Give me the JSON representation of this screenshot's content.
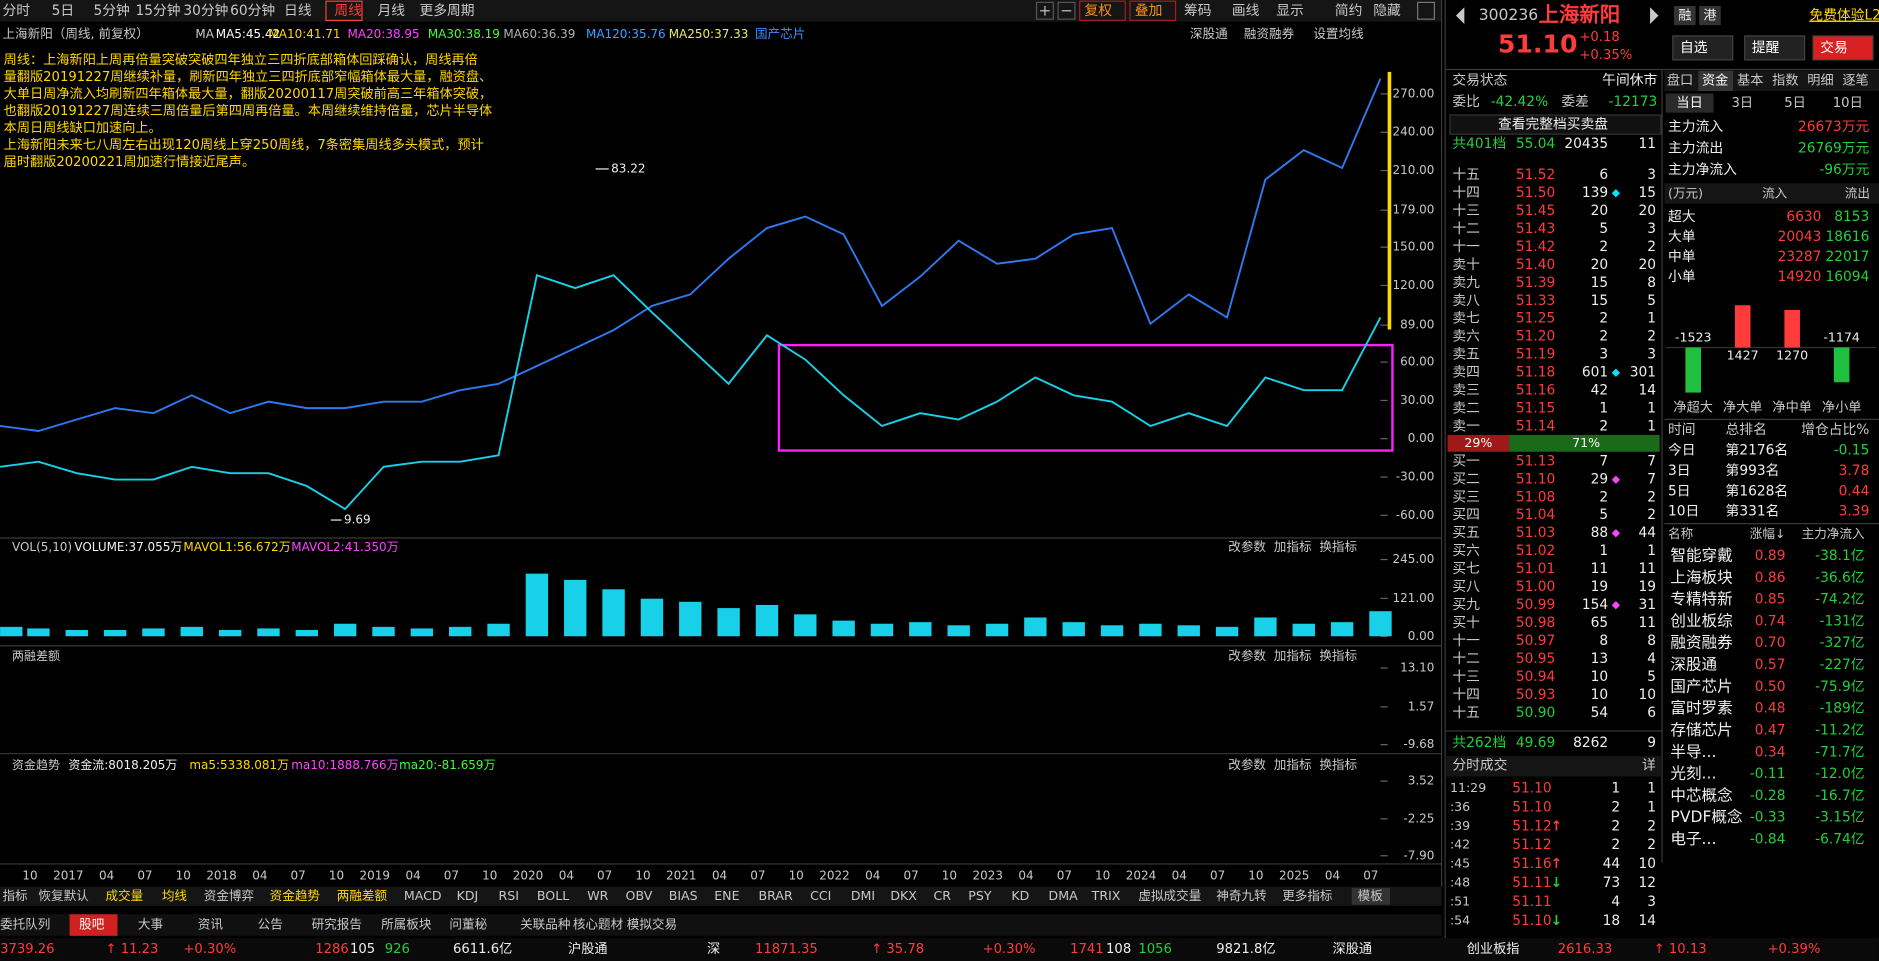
{
  "toolbar": {
    "periods": [
      "分时",
      "5日",
      "5分钟",
      "15分钟",
      "30分钟",
      "60分钟",
      "日线",
      "周线",
      "月线",
      "更多周期"
    ],
    "tools": [
      "复权",
      "叠加",
      "筹码",
      "画线",
      "显示",
      "简约",
      "隐藏"
    ]
  },
  "stock": {
    "code": "300236",
    "name": "上海新阳",
    "price": "51.10",
    "change": "+0.18",
    "change_pct": "+0.35%",
    "tags": [
      "融",
      "港"
    ],
    "promo": "免费体验L2行情",
    "buttons": [
      "自选",
      "提醒",
      "交易"
    ]
  },
  "legend": {
    "title": "上海新阳（周线, 前复权）",
    "ma_label": "MA",
    "mas": [
      "MA5:45.42",
      "MA10:41.71",
      "MA20:38.95",
      "MA30:38.19",
      "MA60:36.39",
      "MA120:35.76",
      "MA250:37.33"
    ],
    "concept": "国产芯片",
    "links": [
      "深股通",
      "融资融券",
      "设置均线"
    ]
  },
  "commentary": [
    "周线：上海新阳上周再倍量突破突破四年独立三四折底部箱体回踩确认，周线再倍",
    "量翻版20191227周继续补量，刷新四年独立三四折底部窄幅箱体最大量，融资盘、",
    "大单日周净流入均刷新四年箱体最大量，翻版20200117周突破前高三年箱体突破，",
    "也翻版20191227周连续三周倍量后第四周再倍量。本周继续维持倍量，芯片半导体",
    "本周日周线缺口加速向上。",
    "上海新阳未来七八周左右出现120周线上穿250周线，7条密集周线多头模式，预计",
    "届时翻版20200221周加速行情接近尾声。"
  ],
  "price_chart": {
    "ylim": [
      -74,
      306
    ],
    "yticks": [
      {
        "value": 270,
        "label": "270.00"
      },
      {
        "value": 240,
        "label": "240.00"
      },
      {
        "value": 210,
        "label": "210.00"
      },
      {
        "value": 179,
        "label": "179.00"
      },
      {
        "value": 150,
        "label": "150.00"
      },
      {
        "value": 120,
        "label": "120.00"
      },
      {
        "value": 89,
        "label": "89.00"
      },
      {
        "value": 60,
        "label": "60.00"
      },
      {
        "value": 30,
        "label": "30.00"
      },
      {
        "value": 0,
        "label": "0.00"
      },
      {
        "value": -30,
        "label": "-30.00"
      },
      {
        "value": -60,
        "label": "-60.00"
      }
    ],
    "series": [
      {
        "color": "#2f78f0",
        "values": [
          10,
          6,
          15,
          24,
          20,
          34,
          20,
          29,
          24,
          24,
          29,
          29,
          38,
          43,
          57,
          71,
          85,
          104,
          113,
          141,
          165,
          174,
          160,
          104,
          127,
          155,
          137,
          141,
          160,
          165,
          90,
          113,
          95,
          203,
          226,
          212,
          282
        ]
      },
      {
        "color": "#18d0e8",
        "values": [
          -22,
          -18,
          -27,
          -32,
          -32,
          -22,
          -27,
          -27,
          -37,
          -55,
          -22,
          -18,
          -18,
          -13,
          128,
          118,
          128,
          99,
          71,
          43,
          81,
          62,
          34,
          10,
          20,
          15,
          29,
          48,
          34,
          29,
          10,
          20,
          10,
          48,
          38,
          38,
          95
        ]
      }
    ],
    "annotations": [
      "83.22",
      "9.69"
    ],
    "x_labels": [
      "10",
      "2017",
      "04",
      "07",
      "10",
      "2018",
      "04",
      "07",
      "10",
      "2019",
      "04",
      "07",
      "10",
      "2020",
      "04",
      "07",
      "10",
      "2021",
      "04",
      "07",
      "10",
      "2022",
      "04",
      "07",
      "10",
      "2023",
      "04",
      "07",
      "10",
      "2024",
      "04",
      "07",
      "10",
      "2025",
      "04",
      "07"
    ]
  },
  "volume": {
    "legend": [
      "VOL(5,10)",
      "VOLUME:37.055万",
      "MAVOL1:56.672万",
      "MAVOL2:41.350万"
    ],
    "buttons": [
      "改参数",
      "加指标",
      "换指标"
    ],
    "ylim": [
      -23,
      264
    ],
    "yticks": [
      {
        "value": 245,
        "label": "245.00"
      },
      {
        "value": 121,
        "label": "121.00"
      },
      {
        "value": 0,
        "label": "0.00"
      }
    ],
    "color": "#18d0e8",
    "values": [
      30,
      25,
      20,
      20,
      25,
      30,
      20,
      25,
      20,
      40,
      30,
      25,
      30,
      40,
      200,
      180,
      150,
      120,
      110,
      90,
      100,
      70,
      50,
      40,
      45,
      35,
      40,
      60,
      45,
      35,
      40,
      35,
      30,
      60,
      40,
      45,
      80
    ]
  },
  "margin_panel": {
    "title": "两融差额",
    "buttons": [
      "改参数",
      "加指标",
      "换指标"
    ],
    "ylim": [
      -11.3,
      15.07
    ],
    "yticks": [
      {
        "value": 13.1,
        "label": "13.10"
      },
      1.57,
      -9.68
    ]
  },
  "fund_trend": {
    "legend": [
      "资金趋势",
      "资金流:8018.205万",
      "ma5:5338.081万",
      "ma10:1888.766万",
      "ma20:-81.659万"
    ],
    "buttons": [
      "改参数",
      "加指标",
      "换指标"
    ],
    "ylim": [
      -8.6,
      4.6
    ],
    "yticks": [
      3.52,
      -2.25,
      {
        "value": -7.9,
        "label": "-7.90"
      }
    ]
  },
  "indicators": [
    "指标",
    "恢复默认",
    "成交量",
    "均线",
    "资金博弈",
    "资金趋势",
    "两融差额",
    "MACD",
    "KDJ",
    "RSI",
    "BOLL",
    "WR",
    "OBV",
    "BIAS",
    "ENE",
    "BRAR",
    "CCI",
    "DMI",
    "DKX",
    "CR",
    "PSY",
    "KD",
    "DMA",
    "TRIX",
    "虚拟成交量",
    "神奇九转",
    "更多指标",
    "模板"
  ],
  "tabs": [
    "委托队列",
    "股吧",
    "大事",
    "资讯",
    "公告",
    "研究报告",
    "所属板块",
    "问董秘",
    "关联品种",
    "核心题材",
    "模拟交易"
  ],
  "status": {
    "sh": [
      "3739.26",
      "↑ 11.23",
      "+0.30%",
      "1286",
      "105",
      "926",
      "6611.6亿",
      "沪股通"
    ],
    "sz": [
      "深",
      "11871.35",
      "↑ 35.78",
      "+0.30%",
      "1741",
      "108",
      "1056",
      "9821.8亿",
      "深股通"
    ],
    "cy": [
      "创业板指",
      "2616.33",
      "↑ 10.13",
      "+0.39%"
    ]
  },
  "order_book": {
    "status_label": "交易状态",
    "status": "午间休市",
    "ratio_label": "委比",
    "ratio": "-42.42%",
    "diff_label": "委差",
    "diff": "-12173",
    "full": "查看完整档买卖盘",
    "ask_total": [
      "共401档",
      "55.04",
      "20435",
      "11"
    ],
    "asks": [
      [
        "十五",
        "51.52",
        "6",
        "3"
      ],
      [
        "十四",
        "51.50",
        "139",
        "15",
        "◆"
      ],
      [
        "十三",
        "51.45",
        "20",
        "20"
      ],
      [
        "十二",
        "51.43",
        "5",
        "3"
      ],
      [
        "十一",
        "51.42",
        "2",
        "2"
      ],
      [
        "卖十",
        "51.40",
        "20",
        "20"
      ],
      [
        "卖九",
        "51.39",
        "15",
        "8"
      ],
      [
        "卖八",
        "51.33",
        "15",
        "5"
      ],
      [
        "卖七",
        "51.25",
        "2",
        "1"
      ],
      [
        "卖六",
        "51.20",
        "2",
        "2"
      ],
      [
        "卖五",
        "51.19",
        "3",
        "3"
      ],
      [
        "卖四",
        "51.18",
        "601",
        "301",
        "◆"
      ],
      [
        "卖三",
        "51.16",
        "42",
        "14"
      ],
      [
        "卖二",
        "51.15",
        "1",
        "1"
      ],
      [
        "卖一",
        "51.14",
        "2",
        "1"
      ]
    ],
    "split": [
      "29%",
      "71%"
    ],
    "bids": [
      [
        "买一",
        "51.13",
        "7",
        "7"
      ],
      [
        "买二",
        "51.10",
        "29",
        "7",
        "◆"
      ],
      [
        "买三",
        "51.08",
        "2",
        "2"
      ],
      [
        "买四",
        "51.04",
        "5",
        "2"
      ],
      [
        "买五",
        "51.03",
        "88",
        "44",
        "◆"
      ],
      [
        "买六",
        "51.02",
        "1",
        "1"
      ],
      [
        "买七",
        "51.01",
        "11",
        "11"
      ],
      [
        "买八",
        "51.00",
        "19",
        "19"
      ],
      [
        "买九",
        "50.99",
        "154",
        "31",
        "◆"
      ],
      [
        "买十",
        "50.98",
        "65",
        "11"
      ],
      [
        "十一",
        "50.97",
        "8",
        "8"
      ],
      [
        "十二",
        "50.95",
        "13",
        "4"
      ],
      [
        "十三",
        "50.94",
        "10",
        "5"
      ],
      [
        "十四",
        "50.93",
        "10",
        "10"
      ],
      [
        "十五",
        "50.90",
        "54",
        "6"
      ]
    ],
    "bid_total": [
      "共262档",
      "49.69",
      "8262",
      "9"
    ]
  },
  "trades": {
    "title": "分时成交",
    "detail": "详",
    "rows": [
      [
        "11:29",
        "51.10",
        "1",
        "1"
      ],
      [
        ":36",
        "51.10",
        "2",
        "1"
      ],
      [
        ":39",
        "51.12",
        "2",
        "2",
        "↑"
      ],
      [
        ":42",
        "51.12",
        "2",
        "2"
      ],
      [
        ":45",
        "51.16",
        "44",
        "10",
        "↑"
      ],
      [
        ":48",
        "51.11",
        "73",
        "12",
        "↓"
      ],
      [
        ":51",
        "51.11",
        "4",
        "3"
      ],
      [
        ":54",
        "51.10",
        "18",
        "14",
        "↓"
      ]
    ]
  },
  "fund": {
    "tabs": [
      "盘口",
      "资金",
      "基本",
      "指数",
      "明细",
      "逐笔"
    ],
    "periods": [
      "当日",
      "3日",
      "5日",
      "10日"
    ],
    "main": [
      [
        "主力流入",
        "26673万元"
      ],
      [
        "主力流出",
        "26769万元"
      ],
      [
        "主力净流入",
        "-96万元"
      ]
    ],
    "table_header": [
      "(万元)",
      "流入",
      "流出"
    ],
    "table": [
      [
        "超大",
        "6630",
        "8153"
      ],
      [
        "大单",
        "20043",
        "18616"
      ],
      [
        "中单",
        "23287",
        "22017"
      ],
      [
        "小单",
        "14920",
        "16094"
      ]
    ],
    "net_chart": {
      "categories": [
        "净超大",
        "净大单",
        "净中单",
        "净小单"
      ],
      "values": [
        -1523,
        1427,
        1270,
        -1174
      ],
      "ylim": [
        -1700,
        1700
      ],
      "up_color": "#ff3b3b",
      "down_color": "#1fbf3f"
    },
    "rank_header": [
      "时间",
      "总排名",
      "增仓占比%"
    ],
    "rank": [
      [
        "今日",
        "第2176名",
        "-0.15"
      ],
      [
        "3日",
        "第993名",
        "3.78"
      ],
      [
        "5日",
        "第1628名",
        "0.44"
      ],
      [
        "10日",
        "第331名",
        "3.39"
      ]
    ],
    "sector_header": [
      "名称",
      "涨幅↓",
      "主力净流入"
    ],
    "sectors": [
      [
        "智能穿戴",
        "0.89",
        "-38.1亿"
      ],
      [
        "上海板块",
        "0.86",
        "-36.6亿"
      ],
      [
        "专精特新",
        "0.85",
        "-74.2亿"
      ],
      [
        "创业板综",
        "0.74",
        "-131亿"
      ],
      [
        "融资融券",
        "0.70",
        "-327亿"
      ],
      [
        "深股通",
        "0.57",
        "-227亿"
      ],
      [
        "国产芯片",
        "0.50",
        "-75.9亿"
      ],
      [
        "富时罗素",
        "0.48",
        "-189亿"
      ],
      [
        "存储芯片",
        "0.47",
        "-11.2亿"
      ],
      [
        "半导...",
        "0.34",
        "-71.7亿"
      ],
      [
        "光刻...",
        "-0.11",
        "-12.0亿"
      ],
      [
        "中芯概念",
        "-0.28",
        "-16.7亿"
      ],
      [
        "PVDF概念",
        "-0.33",
        "-3.15亿"
      ],
      [
        "电子...",
        "-0.84",
        "-6.74亿"
      ]
    ]
  }
}
